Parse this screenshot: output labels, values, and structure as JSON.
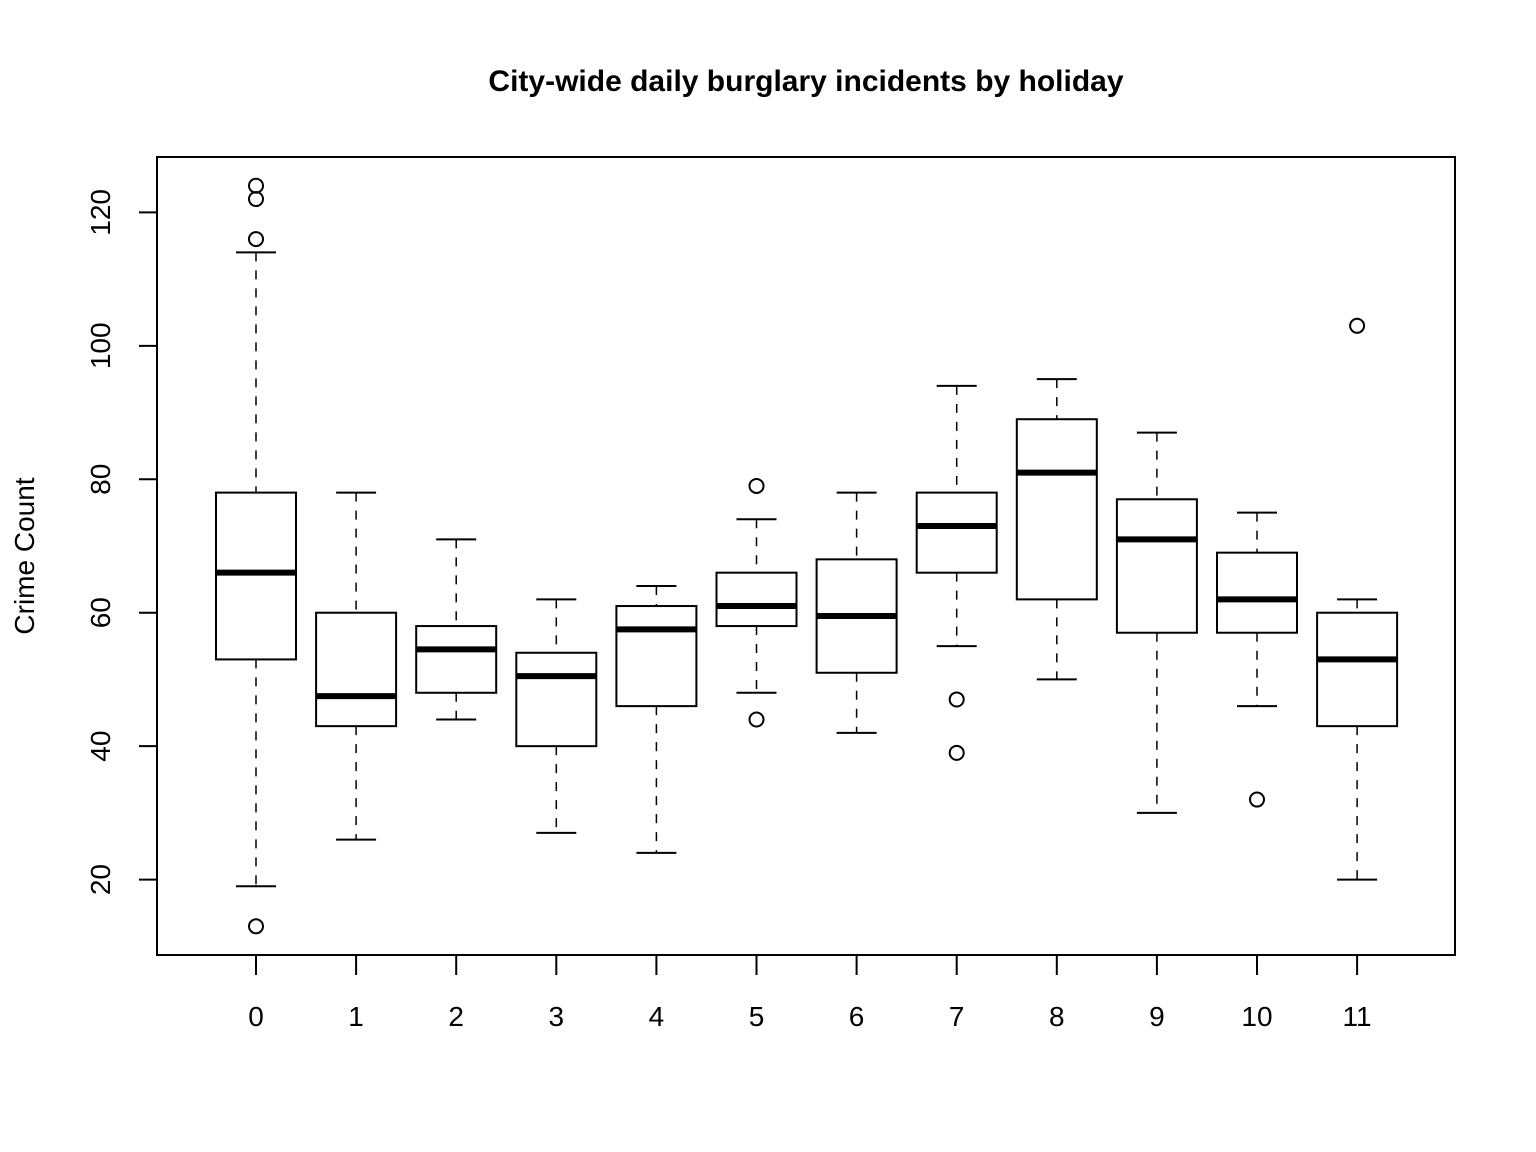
{
  "chart_data": {
    "type": "boxplot",
    "title": "City-wide daily burglary incidents by holiday",
    "xlabel": "",
    "ylabel": "Crime Count",
    "ylim": [
      8.7,
      128.3
    ],
    "yticks": [
      20,
      40,
      60,
      80,
      100,
      120
    ],
    "grid": false,
    "categories": [
      "0",
      "1",
      "2",
      "3",
      "4",
      "5",
      "6",
      "7",
      "8",
      "9",
      "10",
      "11"
    ],
    "boxes": [
      {
        "category": "0",
        "whisker_low": 19,
        "q1": 53,
        "median": 66,
        "q3": 78,
        "whisker_high": 114,
        "outliers": [
          13,
          116,
          122,
          124
        ]
      },
      {
        "category": "1",
        "whisker_low": 26,
        "q1": 43,
        "median": 47.5,
        "q3": 60,
        "whisker_high": 78,
        "outliers": []
      },
      {
        "category": "2",
        "whisker_low": 44,
        "q1": 48,
        "median": 54.5,
        "q3": 58,
        "whisker_high": 71,
        "outliers": []
      },
      {
        "category": "3",
        "whisker_low": 27,
        "q1": 40,
        "median": 50.5,
        "q3": 54,
        "whisker_high": 62,
        "outliers": []
      },
      {
        "category": "4",
        "whisker_low": 24,
        "q1": 46,
        "median": 57.5,
        "q3": 61,
        "whisker_high": 64,
        "outliers": []
      },
      {
        "category": "5",
        "whisker_low": 48,
        "q1": 58,
        "median": 61,
        "q3": 66,
        "whisker_high": 74,
        "outliers": [
          44,
          79
        ]
      },
      {
        "category": "6",
        "whisker_low": 42,
        "q1": 51,
        "median": 59.5,
        "q3": 68,
        "whisker_high": 78,
        "outliers": []
      },
      {
        "category": "7",
        "whisker_low": 55,
        "q1": 66,
        "median": 73,
        "q3": 78,
        "whisker_high": 94,
        "outliers": [
          39,
          47
        ]
      },
      {
        "category": "8",
        "whisker_low": 50,
        "q1": 62,
        "median": 81,
        "q3": 89,
        "whisker_high": 95,
        "outliers": []
      },
      {
        "category": "9",
        "whisker_low": 30,
        "q1": 57,
        "median": 71,
        "q3": 77,
        "whisker_high": 87,
        "outliers": []
      },
      {
        "category": "10",
        "whisker_low": 46,
        "q1": 57,
        "median": 62,
        "q3": 69,
        "whisker_high": 75,
        "outliers": [
          32
        ]
      },
      {
        "category": "11",
        "whisker_low": 20,
        "q1": 43,
        "median": 53,
        "q3": 60,
        "whisker_high": 62,
        "outliers": [
          103
        ]
      }
    ]
  }
}
